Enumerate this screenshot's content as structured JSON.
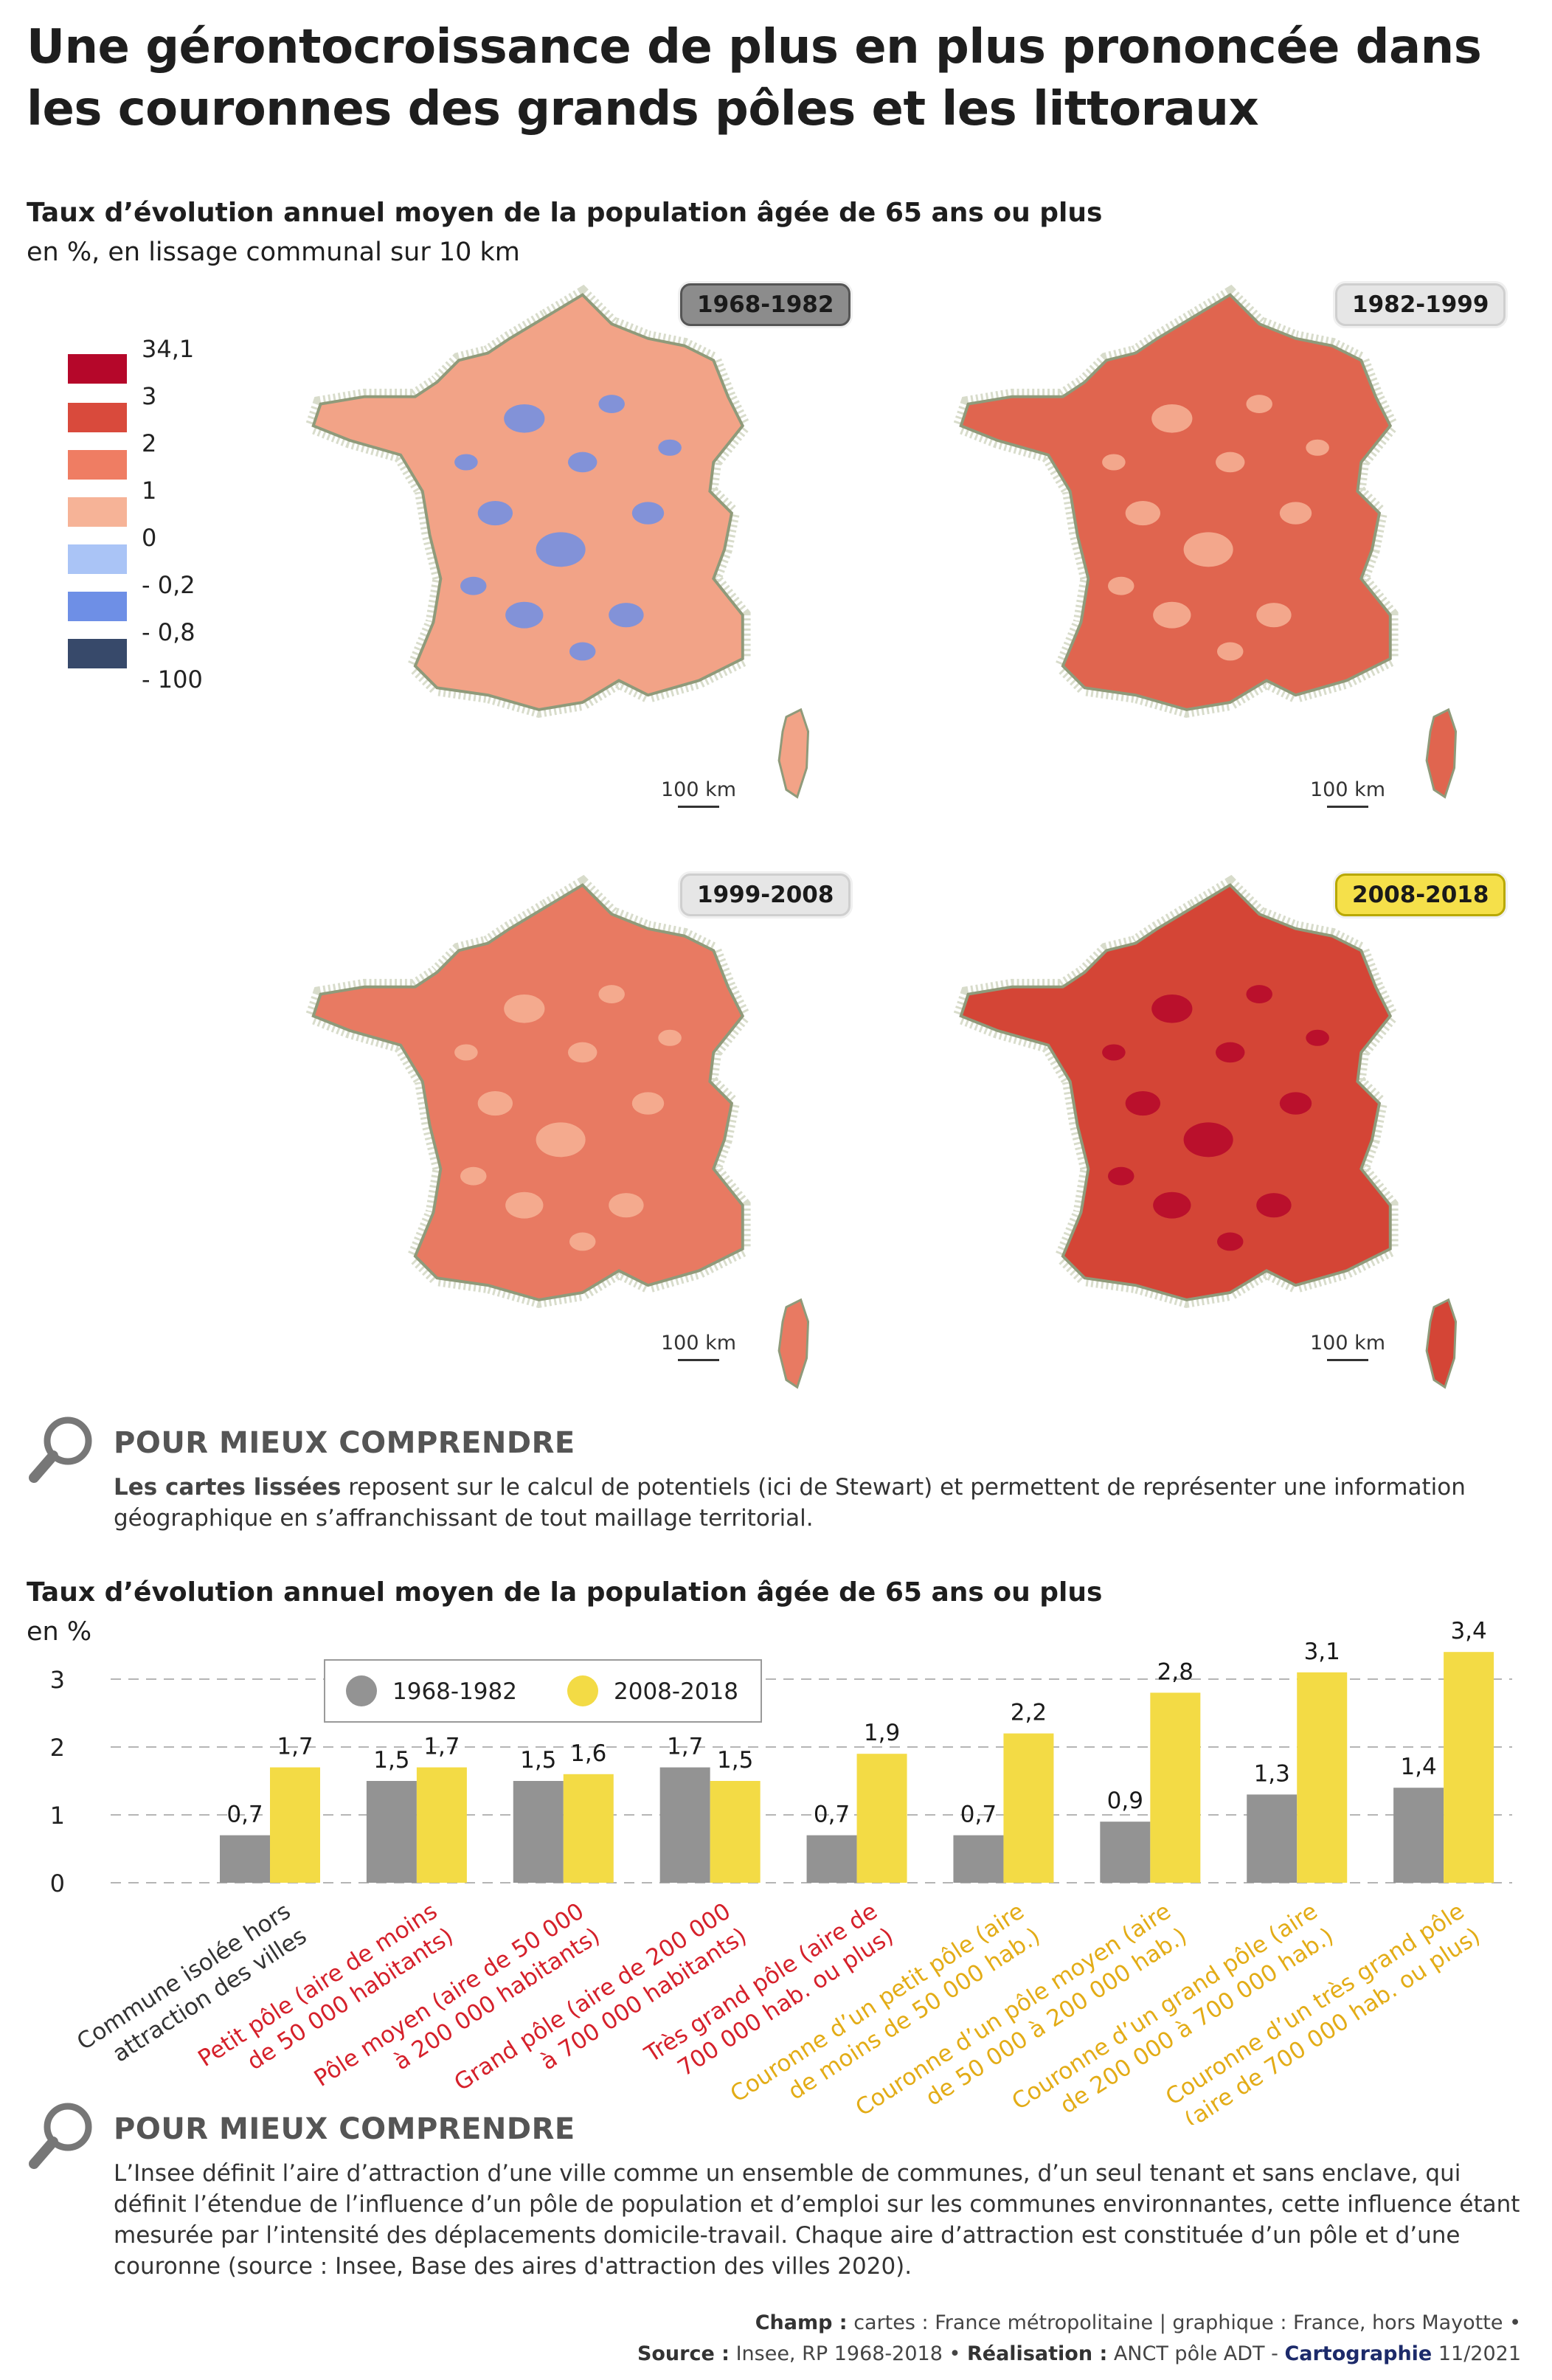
{
  "title": "Une gérontocroissance de plus en plus prononcée dans les couronnes des grands pôles et les littoraux",
  "maps_section": {
    "title": "Taux d’évolution annuel moyen de la population âgée de 65 ans ou plus",
    "unit": "en %, en lissage communal sur 10 km",
    "legend": [
      {
        "label": "34,1",
        "color": "#b5072a"
      },
      {
        "label": "3",
        "color": "#d94a3c"
      },
      {
        "label": "2",
        "color": "#ef7d63"
      },
      {
        "label": "1",
        "color": "#f6b397"
      },
      {
        "label": "0",
        "color": "#aac4f6"
      },
      {
        "label": "- 0,2",
        "color": "#6e8fe6"
      },
      {
        "label": "- 0,8",
        "color": "#37496a"
      },
      {
        "label": "- 100",
        "color": ""
      }
    ],
    "maps": [
      {
        "period": "1968-1982",
        "badge_bg": "#8c8c8c",
        "fill": "#f2a387",
        "spots": "#6e8fe6",
        "scale": "100 km"
      },
      {
        "period": "1982-1999",
        "badge_bg": "#e6e6e6",
        "fill": "#e0654f",
        "spots": "#f6b397",
        "scale": "100 km"
      },
      {
        "period": "1999-2008",
        "badge_bg": "#e6e6e6",
        "fill": "#e87a62",
        "spots": "#f6b397",
        "scale": "100 km"
      },
      {
        "period": "2008-2018",
        "badge_bg": "#f5e04a",
        "fill": "#d44536",
        "spots": "#b5072a",
        "scale": "100 km"
      }
    ]
  },
  "info1": {
    "heading": "POUR MIEUX COMPRENDRE",
    "bold": "Les cartes lissées",
    "text": " reposent sur le calcul de potentiels (ici de Stewart) et permettent de représenter une information géographique en s’affranchissant de tout maillage territorial."
  },
  "chart_section": {
    "title": "Taux d’évolution annuel moyen de la population âgée de 65 ans ou plus",
    "unit": "en %"
  },
  "chart_data": {
    "type": "bar",
    "title": "Taux d’évolution annuel moyen de la population âgée de 65 ans ou plus",
    "ylabel": "en %",
    "ylim": [
      0,
      3.4
    ],
    "yticks": [
      "0",
      "1",
      "2",
      "3"
    ],
    "grid": true,
    "legend_position": "top-left",
    "categories": [
      {
        "label": "Commune isolée hors attraction des villes",
        "lines": [
          "Commune isolée hors",
          "attraction des villes"
        ],
        "color": "#333333"
      },
      {
        "label": "Petit pôle (aire de moins de 50 000 habitants)",
        "lines": [
          "Petit pôle (aire de moins",
          "de 50 000 habitants)"
        ],
        "color": "#d5202a"
      },
      {
        "label": "Pôle moyen (aire de 50 000 à 200 000 habitants)",
        "lines": [
          "Pôle moyen (aire de 50 000",
          "à 200 000 habitants)"
        ],
        "color": "#d5202a"
      },
      {
        "label": "Grand pôle (aire de 200 000 à 700 000 habitants)",
        "lines": [
          "Grand pôle (aire de 200 000",
          "à 700 000 habitants)"
        ],
        "color": "#d5202a"
      },
      {
        "label": "Très grand pôle (aire de 700 000 hab. ou plus)",
        "lines": [
          "Très grand pôle (aire de",
          "700 000 hab. ou plus)"
        ],
        "color": "#d5202a"
      },
      {
        "label": "Couronne d’un petit pôle (aire de moins de 50 000 hab.)",
        "lines": [
          "Couronne d’un petit pôle (aire",
          "de moins de 50 000 hab.)"
        ],
        "color": "#e3ac16"
      },
      {
        "label": "Couronne d’un pôle moyen (aire de 50 000 à 200 000 hab.)",
        "lines": [
          "Couronne d’un pôle moyen (aire",
          "de 50 000 à 200 000 hab.)"
        ],
        "color": "#e3ac16"
      },
      {
        "label": "Couronne d’un grand pôle (aire de 200 000 à 700 000 hab.)",
        "lines": [
          "Couronne d’un grand pôle (aire",
          "de 200 000 à 700 000 hab.)"
        ],
        "color": "#e3ac16"
      },
      {
        "label": "Couronne d’un très grand pôle (aire de 700 000 hab. ou plus)",
        "lines": [
          "Couronne d’un très grand pôle",
          "(aire de 700 000 hab. ou plus)"
        ],
        "color": "#e3ac16"
      }
    ],
    "series": [
      {
        "name": "1968-1982",
        "color": "#939393",
        "values": [
          0.7,
          1.5,
          1.5,
          1.7,
          0.7,
          0.7,
          0.9,
          1.3,
          1.4
        ],
        "labels": [
          "0,7",
          "1,5",
          "1,5",
          "1,7",
          "0,7",
          "0,7",
          "0,9",
          "1,3",
          "1,4"
        ]
      },
      {
        "name": "2008-2018",
        "color": "#f3db45",
        "values": [
          1.7,
          1.7,
          1.6,
          1.5,
          1.9,
          2.2,
          2.8,
          3.1,
          3.4
        ],
        "labels": [
          "1,7",
          "1,7",
          "1,6",
          "1,5",
          "1,9",
          "2,2",
          "2,8",
          "3,1",
          "3,4"
        ]
      }
    ]
  },
  "info2": {
    "heading": "POUR MIEUX COMPRENDRE",
    "text": "L’Insee définit l’aire d’attraction d’une ville comme un ensemble de communes, d’un seul tenant et sans enclave, qui définit l’étendue de l’influence d’un pôle de population et d’emploi sur les communes environnantes, cette influence étant mesurée par l’intensité des déplacements domicile-travail. Chaque aire d’attraction est constituée d’un pôle et d’une couronne (source : Insee, Base des aires d'attraction des villes 2020)."
  },
  "footer": {
    "champ_label": "Champ :",
    "champ_text": " cartes : France métropolitaine | graphique : France, hors Mayotte •",
    "source_label": "Source :",
    "source_text": " Insee, RP 1968-2018 • ",
    "realisation_label": "Réalisation :",
    "realisation_text": " ANCT pôle ADT - ",
    "cartographie": "Cartographie",
    "date": " 11/2021"
  }
}
